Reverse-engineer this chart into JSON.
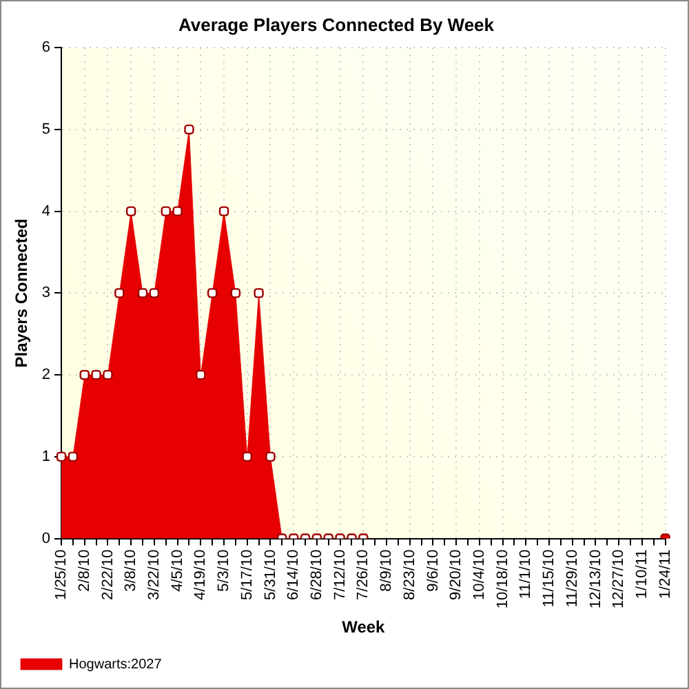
{
  "chart_data": {
    "type": "area",
    "title": "Average Players Connected By Week",
    "xlabel": "Week",
    "ylabel": "Players Connected",
    "categories": [
      "1/25/10",
      null,
      "2/8/10",
      null,
      "2/22/10",
      null,
      "3/8/10",
      null,
      "3/22/10",
      null,
      "4/5/10",
      null,
      "4/19/10",
      null,
      "5/3/10",
      null,
      "5/17/10",
      null,
      "5/31/10",
      null,
      "6/14/10",
      null,
      "6/28/10",
      null,
      "7/12/10",
      null,
      "7/26/10",
      null,
      "8/9/10",
      null,
      "8/23/10",
      null,
      "9/6/10",
      null,
      "9/20/10",
      null,
      "10/4/10",
      null,
      "10/18/10",
      null,
      "11/1/10",
      null,
      "11/15/10",
      null,
      "11/29/10",
      null,
      "12/13/10",
      null,
      "12/27/10",
      null,
      "1/10/11",
      null,
      "1/24/11"
    ],
    "series": [
      {
        "name": "Hogwarts:2027",
        "color": "#e60000",
        "values": [
          1,
          1,
          2,
          2,
          2,
          3,
          4,
          3,
          3,
          4,
          4,
          5,
          2,
          3,
          4,
          3,
          1,
          3,
          1,
          0,
          0,
          0,
          0,
          0,
          0,
          0,
          0,
          null,
          null,
          null,
          null,
          null,
          null,
          null,
          null,
          null,
          null,
          null,
          null,
          null,
          null,
          null,
          null,
          null,
          null,
          null,
          null,
          null,
          null,
          null,
          null,
          null,
          null
        ]
      },
      {
        "type": "scatter",
        "color": "#e60000",
        "values": [
          null,
          null,
          null,
          null,
          null,
          null,
          null,
          null,
          null,
          null,
          null,
          null,
          null,
          null,
          null,
          null,
          null,
          null,
          null,
          null,
          null,
          null,
          null,
          null,
          null,
          null,
          null,
          null,
          null,
          null,
          null,
          null,
          null,
          null,
          null,
          null,
          null,
          null,
          null,
          null,
          null,
          null,
          null,
          null,
          null,
          null,
          null,
          null,
          null,
          null,
          null,
          null,
          0
        ]
      }
    ],
    "ylim": [
      0,
      6
    ],
    "yticks": [
      0,
      1,
      2,
      3,
      4,
      5,
      6
    ],
    "grid": true,
    "legend": "bottom left",
    "marker": "square"
  }
}
